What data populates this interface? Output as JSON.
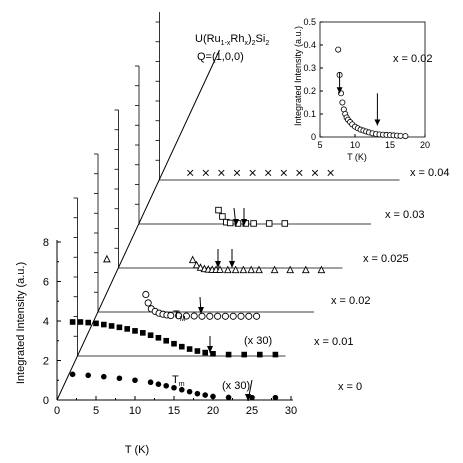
{
  "chart_data": {
    "type": "scatter",
    "layout": "stacked-3d-waterfall",
    "compound": {
      "base": "U(Ru",
      "sub1": "1-x",
      "mid": "Rh",
      "sub2": "x",
      "end": ")",
      "sub3": "2",
      "tail": "Si",
      "sub4": "2"
    },
    "q_label": "Q=(1,0,0)",
    "xlabel": "T (K)",
    "ylabel": "Integrated Intensity (a.u.)",
    "xticks": [
      "0",
      "5",
      "10",
      "15",
      "20",
      "25",
      "30"
    ],
    "yticks": [
      "0",
      "2",
      "4",
      "6",
      "8"
    ],
    "xlim": [
      0,
      30
    ],
    "ylim": [
      0,
      8
    ],
    "annotations": {
      "tm_lower": "T",
      "tm_lower_sub": "m",
      "tm_upper": "T",
      "tm_upper_sub": "M",
      "scale_note": "(x 30)"
    },
    "series": [
      {
        "name": "x = 0",
        "marker": "filled-circle",
        "scaled": "(x 30)",
        "x": [
          2,
          4,
          6,
          8,
          10,
          12,
          13,
          14,
          15,
          16,
          17,
          18,
          19,
          20,
          22,
          25,
          28
        ],
        "y": [
          1.3,
          1.25,
          1.18,
          1.1,
          1.0,
          0.9,
          0.8,
          0.72,
          0.62,
          0.52,
          0.42,
          0.32,
          0.25,
          0.18,
          0.13,
          0.12,
          0.12
        ]
      },
      {
        "name": "x = 0.01",
        "marker": "filled-square",
        "scaled": "(x 30)",
        "x": [
          2,
          3,
          4,
          5,
          6,
          7,
          8,
          9,
          10,
          11,
          12,
          13,
          14,
          15,
          16,
          17,
          18,
          19,
          20,
          22,
          24,
          26,
          28
        ],
        "y": [
          1.75,
          1.75,
          1.72,
          1.68,
          1.62,
          1.55,
          1.48,
          1.4,
          1.3,
          1.2,
          1.08,
          0.95,
          0.8,
          0.65,
          0.5,
          0.38,
          0.28,
          0.2,
          0.14,
          0.1,
          0.1,
          0.1,
          0.1
        ]
      },
      {
        "name": "x = 0.02",
        "marker": "open-circle",
        "x": [
          7.8,
          8.1,
          8.5,
          9,
          9.5,
          10,
          10.5,
          11,
          12,
          13,
          14,
          15,
          16,
          17,
          18,
          19,
          20,
          21,
          22
        ],
        "y": [
          0.88,
          0.55,
          0.32,
          0.22,
          0.15,
          0.11,
          0.08,
          0.06,
          0.05,
          0.04,
          0.04,
          0.03,
          0.03,
          0.03,
          0.03,
          0.03,
          0.03,
          0.03,
          0.03
        ]
      },
      {
        "name": "x = 0.025",
        "marker": "open-triangle",
        "x": [
          0.5,
          11.5,
          12,
          12.5,
          13,
          13.5,
          14,
          14.5,
          15,
          16,
          17,
          18,
          19,
          20,
          22,
          24,
          26,
          28
        ],
        "y": [
          0.45,
          0.42,
          0.22,
          0.12,
          0.07,
          0.05,
          0.04,
          0.04,
          0.04,
          0.03,
          0.03,
          0.03,
          0.03,
          0.03,
          0.03,
          0.03,
          0.03,
          0.03
        ]
      },
      {
        "name": "x = 0.03",
        "marker": "open-square",
        "x": [
          12.5,
          13,
          13.5,
          14,
          15,
          16,
          17,
          19,
          21
        ],
        "y": [
          0.55,
          0.3,
          0.08,
          0.05,
          0.03,
          0.03,
          0.03,
          0.03,
          0.03
        ]
      },
      {
        "name": "x = 0.04",
        "marker": "cross",
        "x": [
          4,
          6,
          8,
          10,
          12,
          14,
          16,
          18,
          20,
          22
        ],
        "y": [
          0,
          0,
          0,
          0,
          0,
          0,
          0,
          0,
          0,
          0
        ]
      }
    ],
    "inset": {
      "label": "x = 0.02",
      "xlabel": "T (K)",
      "ylabel": "Integrated Intensity (a.u.)",
      "xticks": [
        "5",
        "10",
        "15",
        "20"
      ],
      "yticks": [
        "0",
        "0.1",
        "0.2",
        "0.3",
        "0.4",
        "0.5"
      ],
      "xlim": [
        5,
        20
      ],
      "ylim": [
        0,
        0.5
      ],
      "x": [
        7.6,
        7.8,
        8.0,
        8.2,
        8.4,
        8.6,
        8.8,
        9.0,
        9.3,
        9.6,
        10.0,
        10.4,
        10.8,
        11.2,
        11.6,
        12.0,
        12.5,
        13.0,
        13.5,
        14.0,
        14.5,
        15.0,
        15.5,
        16.0,
        16.5,
        17.2
      ],
      "y": [
        0.38,
        0.27,
        0.19,
        0.15,
        0.12,
        0.1,
        0.085,
        0.075,
        0.065,
        0.055,
        0.045,
        0.038,
        0.032,
        0.028,
        0.024,
        0.02,
        0.016,
        0.013,
        0.011,
        0.01,
        0.009,
        0.008,
        0.007,
        0.006,
        0.005,
        0.004
      ],
      "arrows": [
        7.8,
        13.2
      ]
    }
  }
}
